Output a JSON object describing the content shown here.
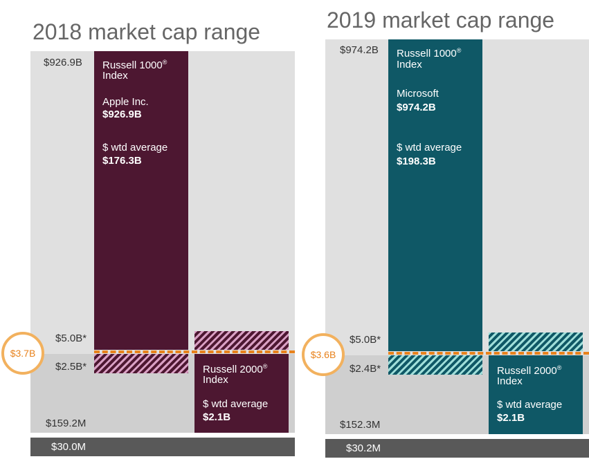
{
  "colors": {
    "r1000_2018": "#4d1731",
    "r1000_2019": "#0f5866",
    "line": "#e8821c"
  },
  "chart_data": [
    {
      "type": "bar",
      "title": "2018 market cap range",
      "y_labels": {
        "top": "$926.9B",
        "r1000_bottom": "$5.0B*",
        "r2000_top": "$2.5B*",
        "low": "$159.2M",
        "floor": "$30.0M"
      },
      "breakpoint": "$3.7B",
      "russell1000": {
        "name_line1": "Russell 1000",
        "name_reg": "®",
        "name_line2": "Index",
        "largest_label": "Apple Inc.",
        "largest_value": "$926.9B",
        "wtd_label": "$ wtd average",
        "wtd_value": "$176.3B"
      },
      "russell2000": {
        "name_line1": "Russell 2000",
        "name_reg": "®",
        "name_line2": "Index",
        "wtd_label": "$ wtd average",
        "wtd_value": "$2.1B"
      }
    },
    {
      "type": "bar",
      "title": "2019 market cap range",
      "y_labels": {
        "top": "$974.2B",
        "r1000_bottom": "$5.0B*",
        "r2000_top": "$2.4B*",
        "low": "$152.3M",
        "floor": "$30.2M"
      },
      "breakpoint": "$3.6B",
      "russell1000": {
        "name_line1": "Russell 1000",
        "name_reg": "®",
        "name_line2": "Index",
        "largest_label": "Microsoft",
        "largest_value": "$974.2B",
        "wtd_label": "$ wtd average",
        "wtd_value": "$198.3B"
      },
      "russell2000": {
        "name_line1": "Russell 2000",
        "name_reg": "®",
        "name_line2": "Index",
        "wtd_label": "$ wtd average",
        "wtd_value": "$2.1B"
      }
    }
  ]
}
